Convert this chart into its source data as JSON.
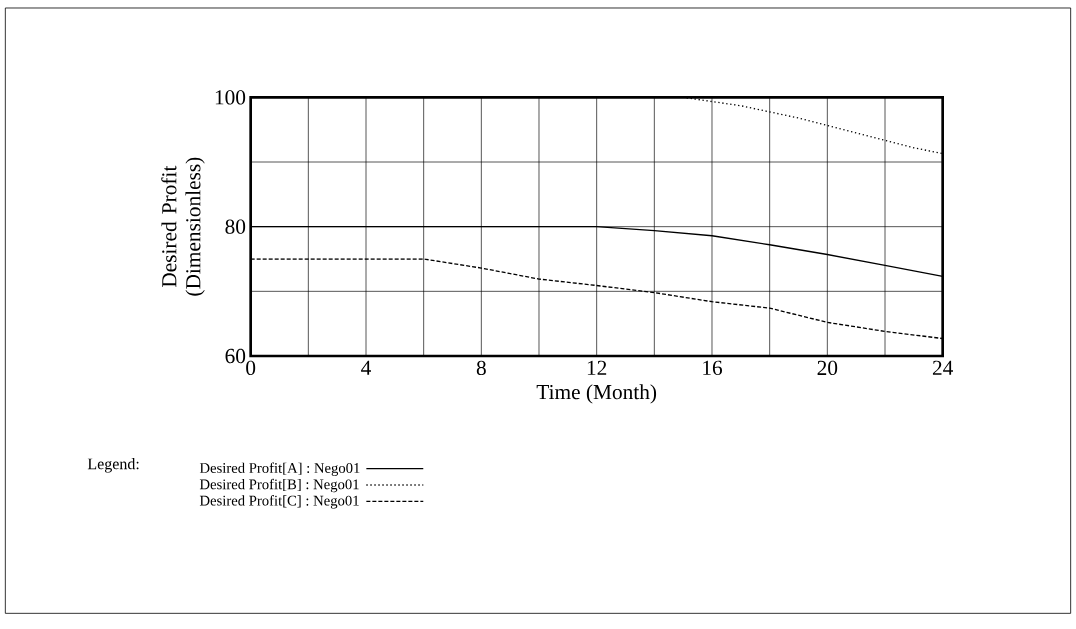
{
  "chart_data": {
    "type": "line",
    "xlabel": "Time (Month)",
    "ylabel": "Desired Profit (Dimensionless)",
    "legend_title": "Legend:",
    "xlim": [
      0,
      24
    ],
    "ylim": [
      60,
      100
    ],
    "xticks": [
      0,
      {
        "value": 2,
        "label": null
      },
      4,
      {
        "value": 6,
        "label": null
      },
      8,
      {
        "value": 10,
        "label": null
      },
      12,
      {
        "value": 14,
        "label": null
      },
      16,
      {
        "value": 18,
        "label": null
      },
      20,
      {
        "value": 22,
        "label": null
      },
      24
    ],
    "yticks": [
      60,
      {
        "value": 70,
        "label": null
      },
      80,
      {
        "value": 90,
        "label": null
      },
      100
    ],
    "grid": true,
    "legend": "bottom",
    "series": [
      {
        "name": "Desired Profit[A] : Nego01",
        "color": "#000000",
        "line_style": "solid",
        "x": [
          0,
          12,
          14,
          16,
          18,
          20,
          22,
          24
        ],
        "values": [
          80,
          80,
          79.4,
          78.6,
          77.2,
          75.7,
          74,
          72.3
        ]
      },
      {
        "name": "Desired Profit[B] : Nego01",
        "color": "#000000",
        "line_style": "dotted",
        "x": [
          0,
          15,
          17,
          19,
          21,
          23,
          24
        ],
        "values": [
          100,
          100,
          98.7,
          96.8,
          94.5,
          92.2,
          91.3
        ]
      },
      {
        "name": "Desired Profit[C] : Nego01",
        "color": "#000000",
        "line_style": "dashed",
        "x": [
          0,
          6,
          8,
          10,
          12,
          14,
          16,
          18,
          20,
          22,
          24
        ],
        "values": [
          75,
          75,
          73.6,
          71.9,
          70.9,
          69.8,
          68.4,
          67.4,
          65.2,
          63.8,
          62.7
        ]
      }
    ]
  }
}
